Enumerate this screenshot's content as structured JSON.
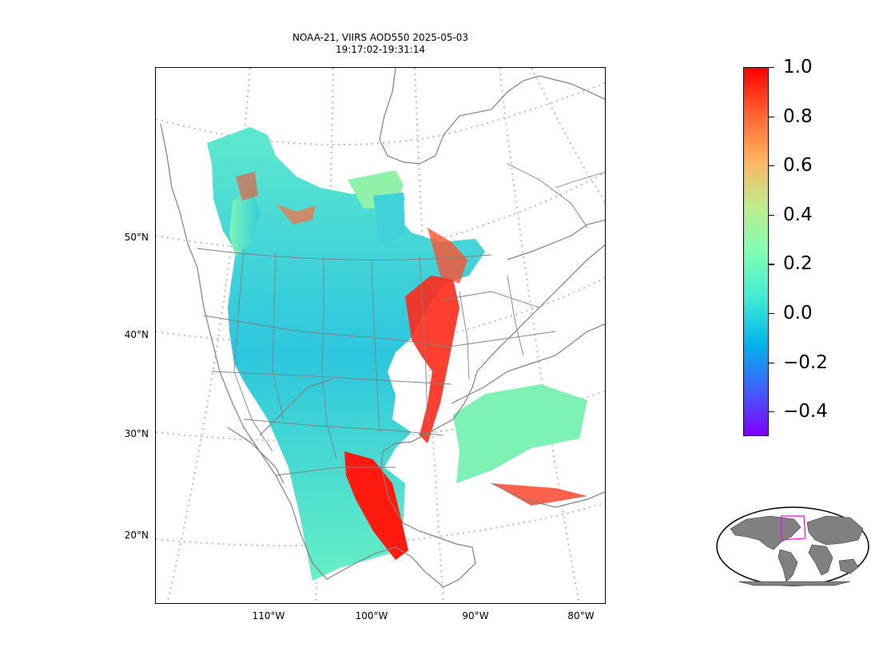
{
  "title": {
    "line1": "NOAA-21, VIIRS AOD550 2025-05-03",
    "line2": "19:17:02-19:31:14"
  },
  "map": {
    "latitude_labels": [
      "50°N",
      "40°N",
      "30°N",
      "20°N"
    ],
    "longitude_labels": [
      "110°W",
      "100°W",
      "90°W",
      "80°W"
    ],
    "gridline_style": "dotted",
    "coastline_color": "#808080",
    "gridline_color": "#bbbbbb"
  },
  "colorbar": {
    "colormap": "rainbow",
    "min": -0.5,
    "max": 1.0,
    "tick_values": [
      1.0,
      0.8,
      0.6,
      0.4,
      0.2,
      0.0,
      -0.2,
      -0.4
    ],
    "tick_labels": [
      "1.0",
      "0.8",
      "0.6",
      "0.4",
      "0.2",
      "0.0",
      "−0.2",
      "−0.4"
    ],
    "colors": [
      "#7f00ff",
      "#3f61fa",
      "#00b5eb",
      "#40ecd3",
      "#80feb3",
      "#c0eb8c",
      "#ffb360",
      "#ff6232",
      "#ff0000"
    ]
  },
  "inset": {
    "land_color": "#808080",
    "highlight_color": "#ff00ff"
  }
}
